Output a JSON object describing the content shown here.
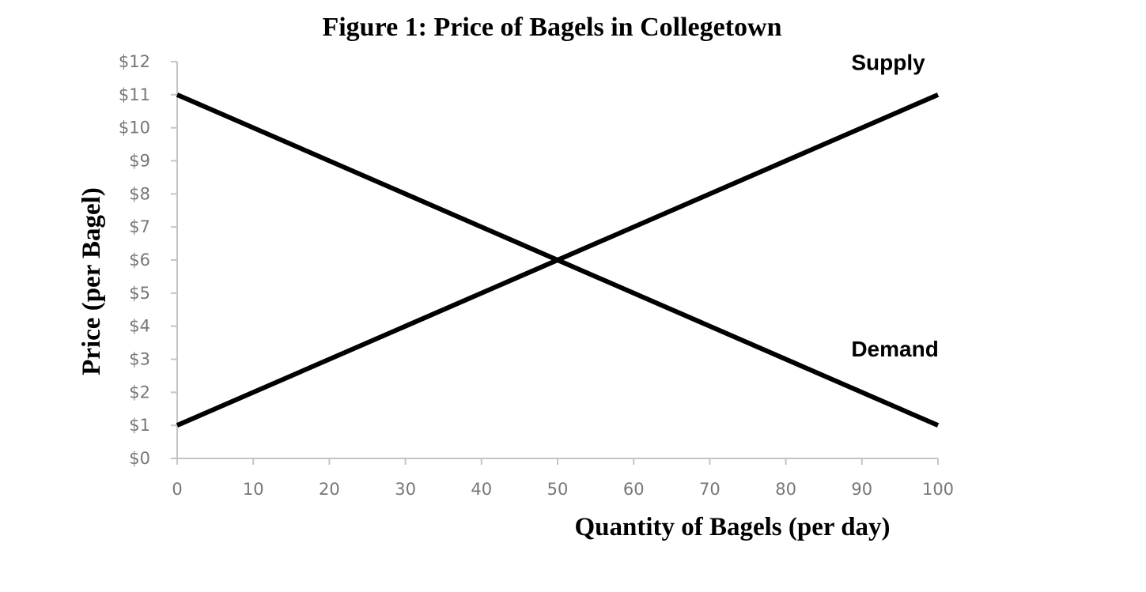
{
  "chart_data": {
    "type": "line",
    "title": "Figure  1: Price of Bagels in Collegetown",
    "xlabel": "Quantity  of Bagels (per day)",
    "ylabel": "Price  (per Bagel)",
    "xlim": [
      0,
      100
    ],
    "ylim": [
      0,
      12
    ],
    "x_ticks": [
      0,
      10,
      20,
      30,
      40,
      50,
      60,
      70,
      80,
      90,
      100
    ],
    "x_tick_labels": [
      "0",
      "10",
      "20",
      "30",
      "40",
      "50",
      "60",
      "70",
      "80",
      "90",
      "100"
    ],
    "y_ticks": [
      0,
      1,
      2,
      3,
      4,
      5,
      6,
      7,
      8,
      9,
      10,
      11,
      12
    ],
    "y_tick_labels": [
      "$0",
      "$1",
      "$2",
      "$3",
      "$4",
      "$5",
      "$6",
      "$7",
      "$8",
      "$9",
      "$10",
      "$11",
      "$12"
    ],
    "grid": false,
    "legend": "none",
    "series": [
      {
        "name": "Supply",
        "x": [
          0,
          100
        ],
        "y": [
          1,
          11
        ],
        "color": "#000000"
      },
      {
        "name": "Demand",
        "x": [
          0,
          100
        ],
        "y": [
          11,
          1
        ],
        "color": "#000000"
      }
    ],
    "axis_color": "#c4c4c4",
    "tick_label_color": "#777777"
  }
}
